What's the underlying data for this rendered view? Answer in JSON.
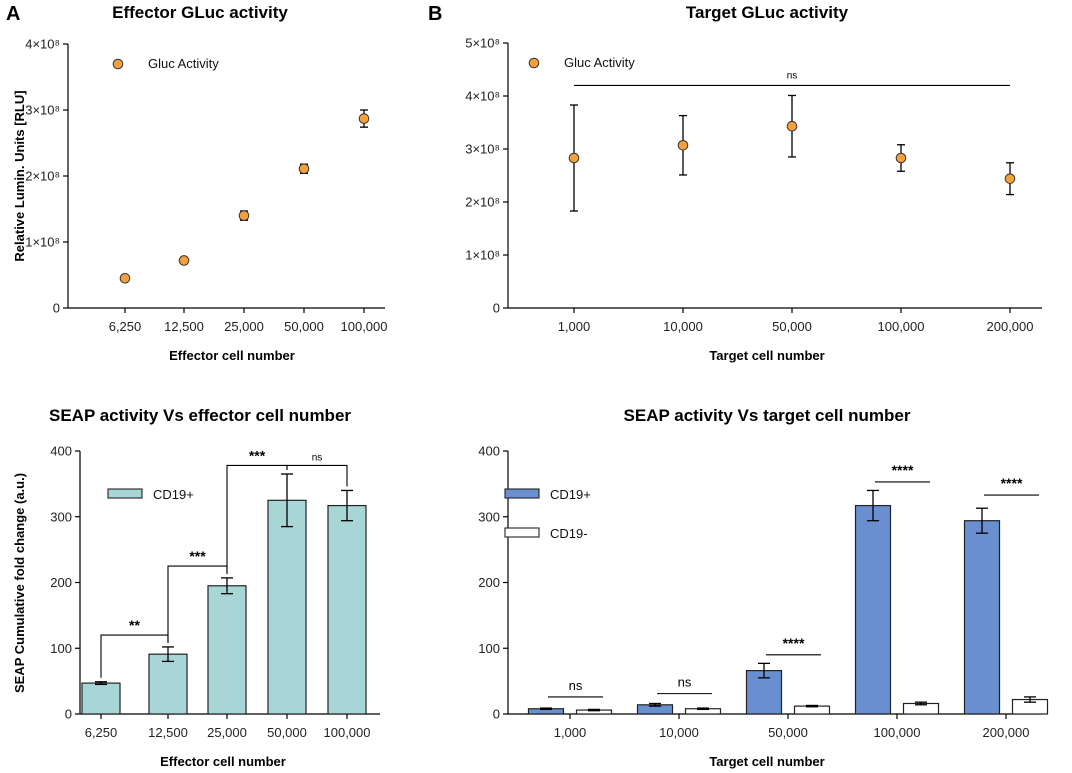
{
  "chart_data": [
    {
      "id": "A",
      "panel_letter": "A",
      "type": "scatter",
      "title": "Effector GLuc activity",
      "xlabel": "Effector cell number",
      "ylabel": "Relative Lumin. Units  [RLU]",
      "categories": [
        "6,250",
        "12,500",
        "25,000",
        "50,000",
        "100,000"
      ],
      "ylim": [
        0,
        400000000
      ],
      "yticks": [
        {
          "value": 0,
          "label": "0"
        },
        {
          "value": 100000000,
          "label": "1×10⁸"
        },
        {
          "value": 200000000,
          "label": "2×10⁸"
        },
        {
          "value": 300000000,
          "label": "3×10⁸"
        },
        {
          "value": 400000000,
          "label": "4×10⁸"
        }
      ],
      "series": [
        {
          "name": "Gluc Activity",
          "color": "#f4a13c",
          "values": [
            45000000,
            72000000,
            140000000,
            211000000,
            287000000
          ],
          "errors": [
            0,
            0,
            7000000,
            7000000,
            13000000
          ]
        }
      ]
    },
    {
      "id": "B",
      "panel_letter": "B",
      "type": "scatter",
      "title": "Target GLuc activity",
      "xlabel": "Target cell number",
      "ylabel": "",
      "categories": [
        "1,000",
        "10,000",
        "50,000",
        "100,000",
        "200,000"
      ],
      "ylim": [
        0,
        500000000
      ],
      "yticks": [
        {
          "value": 0,
          "label": "0"
        },
        {
          "value": 100000000,
          "label": "1×10⁸"
        },
        {
          "value": 200000000,
          "label": "2×10⁸"
        },
        {
          "value": 300000000,
          "label": "3×10⁸"
        },
        {
          "value": 400000000,
          "label": "4×10⁸"
        },
        {
          "value": 500000000,
          "label": "5×10⁸"
        }
      ],
      "series": [
        {
          "name": "Gluc Activity",
          "color": "#f4a13c",
          "values": [
            283000000,
            307000000,
            343000000,
            283000000,
            244000000
          ],
          "errors": [
            100000000,
            56000000,
            58000000,
            25000000,
            30000000
          ]
        }
      ],
      "annotations": [
        {
          "label": "ns",
          "from": 0,
          "to": 4,
          "level": 420000000,
          "kind": "line"
        }
      ]
    },
    {
      "id": "C",
      "type": "bar",
      "title": "SEAP activity Vs effector cell number",
      "xlabel": "Effector cell number",
      "ylabel": "SEAP Cumulative fold change (a.u.)",
      "categories": [
        "6,250",
        "12,500",
        "25,000",
        "50,000",
        "100,000"
      ],
      "ylim": [
        0,
        400
      ],
      "yticks": [
        {
          "value": 0,
          "label": "0"
        },
        {
          "value": 100,
          "label": "100"
        },
        {
          "value": 200,
          "label": "200"
        },
        {
          "value": 300,
          "label": "300"
        },
        {
          "value": 400,
          "label": "400"
        }
      ],
      "series": [
        {
          "name": "CD19+",
          "color": "#a8d5d5",
          "values": [
            47,
            91,
            195,
            325,
            317
          ],
          "errors": [
            2,
            11,
            12,
            40,
            23
          ]
        }
      ],
      "annotations": [
        {
          "label": "**",
          "from": 0,
          "to": 1,
          "level": 120,
          "kind": "bracket"
        },
        {
          "label": "***",
          "from": 1,
          "to": 2,
          "level": 225,
          "kind": "bracket"
        },
        {
          "label": "***",
          "from": 2,
          "to": 3,
          "level": 378,
          "kind": "bracket"
        },
        {
          "label": "ns",
          "from": 3,
          "to": 4,
          "level": 378,
          "kind": "bracket"
        }
      ]
    },
    {
      "id": "D",
      "type": "bar",
      "title": "SEAP activity Vs target cell number",
      "xlabel": "Target cell number",
      "ylabel": "",
      "categories": [
        "1,000",
        "10,000",
        "50,000",
        "100,000",
        "200,000"
      ],
      "ylim": [
        0,
        400
      ],
      "yticks": [
        {
          "value": 0,
          "label": "0"
        },
        {
          "value": 100,
          "label": "100"
        },
        {
          "value": 200,
          "label": "200"
        },
        {
          "value": 300,
          "label": "300"
        },
        {
          "value": 400,
          "label": "400"
        }
      ],
      "series": [
        {
          "name": "CD19+",
          "color": "#6a8fd0",
          "values": [
            8,
            14,
            66,
            317,
            294
          ],
          "errors": [
            1,
            2,
            11,
            23,
            19
          ]
        },
        {
          "name": "CD19-",
          "color": "#ffffff",
          "values": [
            6,
            8,
            12,
            16,
            22
          ],
          "errors": [
            1,
            1,
            1,
            2,
            4
          ]
        }
      ],
      "annotations": [
        {
          "label": "ns",
          "from": 0,
          "to": 0,
          "level": 26,
          "kind": "line"
        },
        {
          "label": "ns",
          "from": 1,
          "to": 1,
          "level": 31,
          "kind": "line"
        },
        {
          "label": "****",
          "from": 2,
          "to": 2,
          "level": 90,
          "kind": "line"
        },
        {
          "label": "****",
          "from": 3,
          "to": 3,
          "level": 353,
          "kind": "line"
        },
        {
          "label": "****",
          "from": 4,
          "to": 4,
          "level": 333,
          "kind": "line"
        }
      ]
    }
  ]
}
